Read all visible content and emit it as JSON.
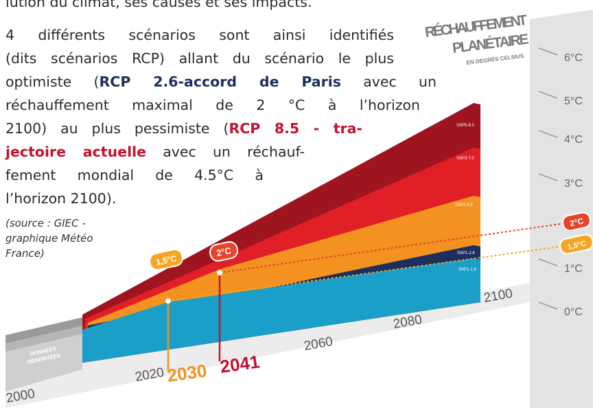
{
  "article": {
    "intro_tail": "lution du climat, ses causes et ses impacts.",
    "paragraph_lines": [
      [
        {
          "text": "4 différents scénarios sont ainsi identifiés",
          "style": "plain"
        }
      ],
      [
        {
          "text": "(dits scénarios RCP) allant du scénario le plus",
          "style": "plain"
        }
      ],
      [
        {
          "text": "optimiste (",
          "style": "plain"
        },
        {
          "text": "RCP 2.6-accord de Paris",
          "style": "navy"
        },
        {
          "text": " avec un",
          "style": "plain"
        }
      ],
      [
        {
          "text": "réchauffement maximal de 2 °C à l’horizon",
          "style": "plain"
        }
      ],
      [
        {
          "text": "2100) au plus pessimiste (",
          "style": "plain"
        },
        {
          "text": "RCP 8.5 - tra-",
          "style": "red"
        }
      ],
      [
        {
          "text": "jectoire actuelle",
          "style": "red"
        },
        {
          "text": " avec un réchauf-",
          "style": "plain"
        }
      ],
      [
        {
          "text": "fement mondial de 4.5°C à",
          "style": "plain"
        }
      ],
      [
        {
          "text": "l’horizon 2100).",
          "style": "plain"
        }
      ]
    ],
    "source_lines": [
      "(source : GIEC -",
      "graphique Météo",
      "France)"
    ]
  },
  "infographic": {
    "title_lines": [
      "RÉCHAUFFEMENT",
      "PLANÉTAIRE"
    ],
    "subtitle": "EN DEGRÉS CELSIUS",
    "axis_labels": [
      "6°C",
      "5°C",
      "4°C",
      "3°C",
      "1°C",
      "0°C"
    ],
    "threshold_badges": [
      "2°C",
      "1,5°C"
    ],
    "years": [
      "2000",
      "2020",
      "2060",
      "2080",
      "2100"
    ],
    "crossing_years": [
      "2030",
      "2041"
    ],
    "observed_label_lines": [
      "DONNÉES",
      "OBSERVÉES"
    ],
    "scenarios": [
      "SSP5-8.5",
      "SSP3-7.0",
      "SSP2-4.5",
      "SSP1-2.6",
      "SSP1-1.9"
    ]
  }
}
